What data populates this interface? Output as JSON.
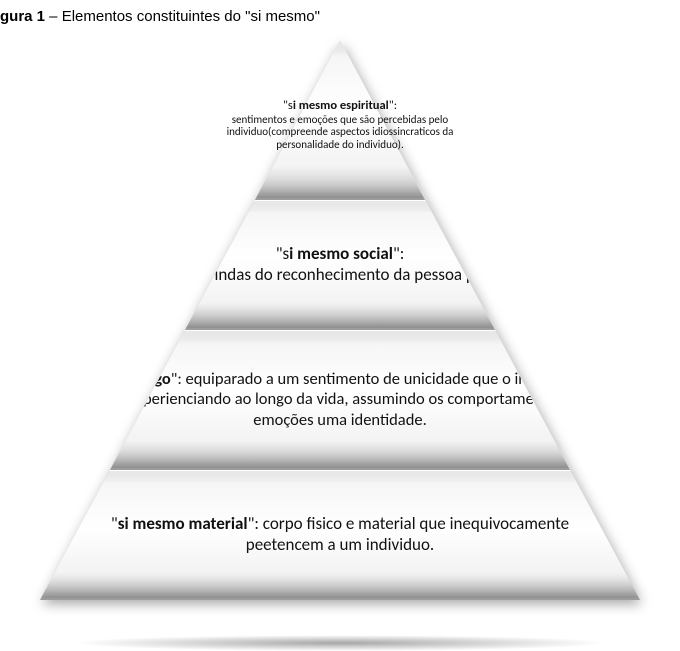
{
  "caption": {
    "label_bold": "gura 1",
    "label_rest": " – Elementos constituintes do \"si mesmo\""
  },
  "pyramid": {
    "type": "pyramid-4-tier",
    "background": "#ffffff",
    "tier_gradient": {
      "top": "#cfcfcf",
      "mid": "#ffffff",
      "bottom": "#bcbcbc"
    },
    "divider_color": "#9c9c9c",
    "shadow_color": "rgba(0,0,0,.35)",
    "font_family": "Calibri",
    "tiers": [
      {
        "id": "espiritual",
        "header_prefix": "\"s",
        "header_bold": "i mesmo espiritual",
        "header_suffix": "\":",
        "body": "sentimentos e emoções que são percebidas pelo individuo(compreende aspectos idiossincraticos da personalidade do individuo).",
        "header_fontsize": 12.5,
        "body_fontsize": 11
      },
      {
        "id": "social",
        "header_prefix": "\"s",
        "header_bold": "i mesmo social",
        "header_suffix": "\":",
        "body": "percepções vindas do reconhecimento da pessoa pelos outros.",
        "fontsize": 17
      },
      {
        "id": "puro-ego",
        "header_prefix": "\"",
        "header_bold": "puro ego",
        "header_suffix": "\": ",
        "body": "equiparado a um sentimento de unicidade que o individuo vai experienciando ao longo da vida, assumindo os comportamentos  e emoções  uma identidade.",
        "fontsize": 16.5
      },
      {
        "id": "material",
        "header_prefix": "\"",
        "header_bold": "si mesmo material",
        "header_suffix": "\": ",
        "body": "corpo fisico e material que inequivocamente peetencem a um individuo.",
        "fontsize": 17
      }
    ]
  }
}
